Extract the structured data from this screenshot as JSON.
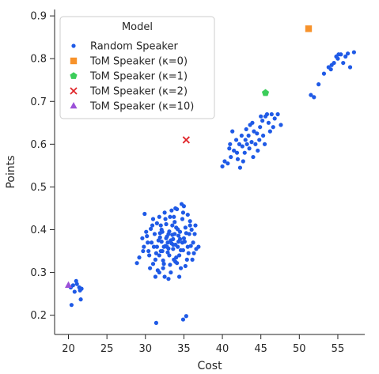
{
  "chart_data": {
    "type": "scatter",
    "title": "",
    "xlabel": "Cost",
    "ylabel": "Points",
    "xlim": [
      18.2,
      58.5
    ],
    "ylim": [
      0.155,
      0.915
    ],
    "xticks": [
      20,
      25,
      30,
      35,
      40,
      45,
      50,
      55
    ],
    "yticks": [
      0.2,
      0.3,
      0.4,
      0.5,
      0.6,
      0.7,
      0.8,
      0.9
    ],
    "grid": false,
    "legend": {
      "title": "Model",
      "placement": "top-left",
      "entries": [
        {
          "label": "Random Speaker",
          "color": "#1f5ae6",
          "marker": "circle"
        },
        {
          "label": "ToM Speaker (κ=0)",
          "color": "#f7922a",
          "marker": "square"
        },
        {
          "label": "ToM Speaker (κ=1)",
          "color": "#3ccd5a",
          "marker": "pentagon"
        },
        {
          "label": "ToM Speaker (κ=2)",
          "color": "#e0262a",
          "marker": "x"
        },
        {
          "label": "ToM Speaker (κ=10)",
          "color": "#9b51d8",
          "marker": "triangle"
        }
      ]
    },
    "series": [
      {
        "name": "Random Speaker",
        "color": "#1f5ae6",
        "marker": "circle",
        "points": [
          [
            20.3,
            0.265
          ],
          [
            20.6,
            0.27
          ],
          [
            21.0,
            0.28
          ],
          [
            21.1,
            0.273
          ],
          [
            21.4,
            0.265
          ],
          [
            21.5,
            0.258
          ],
          [
            21.7,
            0.262
          ],
          [
            20.8,
            0.255
          ],
          [
            21.6,
            0.237
          ],
          [
            20.4,
            0.224
          ],
          [
            33.5,
            0.388
          ],
          [
            32.1,
            0.372
          ],
          [
            34.2,
            0.401
          ],
          [
            33.0,
            0.356
          ],
          [
            31.8,
            0.34
          ],
          [
            32.7,
            0.413
          ],
          [
            34.8,
            0.425
          ],
          [
            33.9,
            0.365
          ],
          [
            35.3,
            0.392
          ],
          [
            32.4,
            0.32
          ],
          [
            33.2,
            0.43
          ],
          [
            34.5,
            0.378
          ],
          [
            31.5,
            0.36
          ],
          [
            32.9,
            0.347
          ],
          [
            34.0,
            0.405
          ],
          [
            35.8,
            0.41
          ],
          [
            33.7,
            0.33
          ],
          [
            32.2,
            0.395
          ],
          [
            33.4,
            0.368
          ],
          [
            34.6,
            0.352
          ],
          [
            31.9,
            0.382
          ],
          [
            32.6,
            0.362
          ],
          [
            33.8,
            0.418
          ],
          [
            34.3,
            0.386
          ],
          [
            35.1,
            0.372
          ],
          [
            32.0,
            0.35
          ],
          [
            33.1,
            0.396
          ],
          [
            34.9,
            0.44
          ],
          [
            33.6,
            0.378
          ],
          [
            32.8,
            0.384
          ],
          [
            31.3,
            0.33
          ],
          [
            30.8,
            0.37
          ],
          [
            30.4,
            0.35
          ],
          [
            29.8,
            0.36
          ],
          [
            30.1,
            0.395
          ],
          [
            29.9,
            0.437
          ],
          [
            31.0,
            0.425
          ],
          [
            30.6,
            0.31
          ],
          [
            31.6,
            0.305
          ],
          [
            32.3,
            0.31
          ],
          [
            33.3,
            0.3
          ],
          [
            34.1,
            0.322
          ],
          [
            35.6,
            0.345
          ],
          [
            35.9,
            0.362
          ],
          [
            36.2,
            0.37
          ],
          [
            36.6,
            0.355
          ],
          [
            36.9,
            0.36
          ],
          [
            36.4,
            0.39
          ],
          [
            35.5,
            0.435
          ],
          [
            35.0,
            0.455
          ],
          [
            34.7,
            0.46
          ],
          [
            33.9,
            0.45
          ],
          [
            32.5,
            0.44
          ],
          [
            31.8,
            0.43
          ],
          [
            30.9,
            0.41
          ],
          [
            34.4,
            0.34
          ],
          [
            35.4,
            0.33
          ],
          [
            33.0,
            0.39
          ],
          [
            32.1,
            0.4
          ],
          [
            31.2,
            0.39
          ],
          [
            33.6,
            0.355
          ],
          [
            34.2,
            0.36
          ],
          [
            33.3,
            0.375
          ],
          [
            32.9,
            0.37
          ],
          [
            33.8,
            0.39
          ],
          [
            34.5,
            0.395
          ],
          [
            35.2,
            0.405
          ],
          [
            32.7,
            0.38
          ],
          [
            31.7,
            0.375
          ],
          [
            33.1,
            0.34
          ],
          [
            34.0,
            0.335
          ],
          [
            35.0,
            0.38
          ],
          [
            36.0,
            0.4
          ],
          [
            31.4,
            0.345
          ],
          [
            30.5,
            0.34
          ],
          [
            29.6,
            0.38
          ],
          [
            30.2,
            0.385
          ],
          [
            31.1,
            0.36
          ],
          [
            32.4,
            0.36
          ],
          [
            33.5,
            0.41
          ],
          [
            34.8,
            0.37
          ],
          [
            35.7,
            0.39
          ],
          [
            36.3,
            0.345
          ],
          [
            33.7,
            0.43
          ],
          [
            32.6,
            0.425
          ],
          [
            28.9,
            0.322
          ],
          [
            29.2,
            0.335
          ],
          [
            31.0,
            0.32
          ],
          [
            33.2,
            0.318
          ],
          [
            34.6,
            0.31
          ],
          [
            35.2,
            0.315
          ],
          [
            36.1,
            0.33
          ],
          [
            32.0,
            0.41
          ],
          [
            31.5,
            0.415
          ],
          [
            30.7,
            0.402
          ],
          [
            33.4,
            0.445
          ],
          [
            34.1,
            0.448
          ],
          [
            32.8,
            0.36
          ],
          [
            33.6,
            0.365
          ],
          [
            34.3,
            0.372
          ],
          [
            31.9,
            0.392
          ],
          [
            32.2,
            0.35
          ],
          [
            34.9,
            0.352
          ],
          [
            35.5,
            0.36
          ],
          [
            30.3,
            0.37
          ],
          [
            29.7,
            0.35
          ],
          [
            32.3,
            0.328
          ],
          [
            33.9,
            0.325
          ],
          [
            35.8,
            0.42
          ],
          [
            36.5,
            0.41
          ],
          [
            31.3,
            0.29
          ],
          [
            32.5,
            0.29
          ],
          [
            33.0,
            0.285
          ],
          [
            31.8,
            0.3
          ],
          [
            34.4,
            0.29
          ],
          [
            31.4,
            0.182
          ],
          [
            34.9,
            0.19
          ],
          [
            35.3,
            0.198
          ],
          [
            40.0,
            0.548
          ],
          [
            40.3,
            0.56
          ],
          [
            40.7,
            0.555
          ],
          [
            41.1,
            0.57
          ],
          [
            41.5,
            0.585
          ],
          [
            41.9,
            0.58
          ],
          [
            42.2,
            0.6
          ],
          [
            42.6,
            0.595
          ],
          [
            43.0,
            0.61
          ],
          [
            43.4,
            0.62
          ],
          [
            43.8,
            0.605
          ],
          [
            44.1,
            0.63
          ],
          [
            44.5,
            0.625
          ],
          [
            44.9,
            0.64
          ],
          [
            45.2,
            0.655
          ],
          [
            45.6,
            0.665
          ],
          [
            46.0,
            0.65
          ],
          [
            46.4,
            0.67
          ],
          [
            46.8,
            0.66
          ],
          [
            47.2,
            0.67
          ],
          [
            41.0,
            0.6
          ],
          [
            41.8,
            0.61
          ],
          [
            42.5,
            0.62
          ],
          [
            43.1,
            0.635
          ],
          [
            43.6,
            0.645
          ],
          [
            44.3,
            0.6
          ],
          [
            44.8,
            0.61
          ],
          [
            45.3,
            0.62
          ],
          [
            42.0,
            0.565
          ],
          [
            42.9,
            0.58
          ],
          [
            43.5,
            0.59
          ],
          [
            44.0,
            0.57
          ],
          [
            44.6,
            0.585
          ],
          [
            45.5,
            0.6
          ],
          [
            46.2,
            0.63
          ],
          [
            46.6,
            0.64
          ],
          [
            47.6,
            0.645
          ],
          [
            42.3,
            0.545
          ],
          [
            41.3,
            0.63
          ],
          [
            43.9,
            0.65
          ],
          [
            45.0,
            0.665
          ],
          [
            45.8,
            0.67
          ],
          [
            40.9,
            0.59
          ],
          [
            43.2,
            0.6
          ],
          [
            42.7,
            0.56
          ],
          [
            51.5,
            0.715
          ],
          [
            51.9,
            0.71
          ],
          [
            52.5,
            0.74
          ],
          [
            53.2,
            0.765
          ],
          [
            53.8,
            0.78
          ],
          [
            54.2,
            0.785
          ],
          [
            54.5,
            0.79
          ],
          [
            54.8,
            0.805
          ],
          [
            55.1,
            0.81
          ],
          [
            55.4,
            0.81
          ],
          [
            55.7,
            0.79
          ],
          [
            56.0,
            0.805
          ],
          [
            56.3,
            0.812
          ],
          [
            56.6,
            0.78
          ],
          [
            57.1,
            0.815
          ],
          [
            54.1,
            0.775
          ],
          [
            55.0,
            0.8
          ]
        ]
      },
      {
        "name": "ToM Speaker (κ=0)",
        "color": "#f7922a",
        "marker": "square",
        "points": [
          [
            51.2,
            0.87
          ]
        ]
      },
      {
        "name": "ToM Speaker (κ=1)",
        "color": "#3ccd5a",
        "marker": "pentagon",
        "points": [
          [
            45.6,
            0.72
          ]
        ]
      },
      {
        "name": "ToM Speaker (κ=2)",
        "color": "#e0262a",
        "marker": "x",
        "points": [
          [
            35.3,
            0.61
          ]
        ]
      },
      {
        "name": "ToM Speaker (κ=10)",
        "color": "#9b51d8",
        "marker": "triangle",
        "points": [
          [
            20.0,
            0.27
          ]
        ]
      }
    ]
  }
}
